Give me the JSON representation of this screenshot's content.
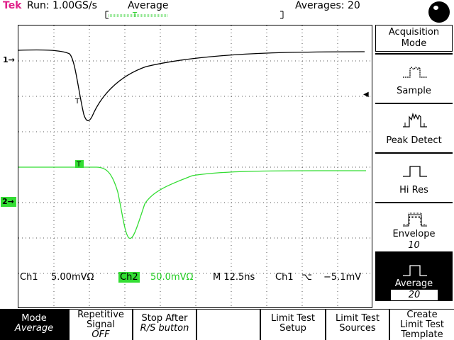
{
  "status": {
    "brand": "Tek",
    "run": "Run: 1.00GS/s",
    "acq_mode": "Average",
    "averages": "Averages: 20"
  },
  "channels": {
    "ch1_marker": "1→",
    "ch2_marker": "2→",
    "trigger_marker": "T"
  },
  "readout": {
    "ch1": "Ch1",
    "ch1_scale": "5.00mVΩ",
    "ch2": "Ch2",
    "ch2_scale": "50.0mVΩ",
    "timebase": "M 12.5ns",
    "trigger_source": "Ch1",
    "trigger_slope": "⌥",
    "trigger_level": "−5.1mV"
  },
  "side_menu": {
    "title_line1": "Acquisition",
    "title_line2": "Mode",
    "items": [
      {
        "label": "Sample",
        "icon": "sample-icon"
      },
      {
        "label": "Peak Detect",
        "icon": "peak-detect-icon"
      },
      {
        "label": "Hi Res",
        "icon": "hi-res-icon"
      },
      {
        "label": "Envelope",
        "sub": "10",
        "icon": "envelope-icon"
      },
      {
        "label": "Average",
        "sub": "20",
        "icon": "average-icon",
        "selected": true
      }
    ]
  },
  "bottom_menu": {
    "items": [
      {
        "l1": "Mode",
        "l2": "Average",
        "selected": true
      },
      {
        "l1": "Repetitive",
        "l2": "Signal",
        "l3": "OFF"
      },
      {
        "l1": "Stop After",
        "l2": "R/S button"
      },
      {
        "l1": ""
      },
      {
        "l1": "Limit Test",
        "l2": "Setup"
      },
      {
        "l1": "Limit Test",
        "l2": "Sources"
      },
      {
        "l1": "Create",
        "l2": "Limit Test",
        "l3": "Template"
      }
    ]
  },
  "colors": {
    "ch1": "#000000",
    "ch2": "#33dd33",
    "brand": "#e0208a"
  }
}
